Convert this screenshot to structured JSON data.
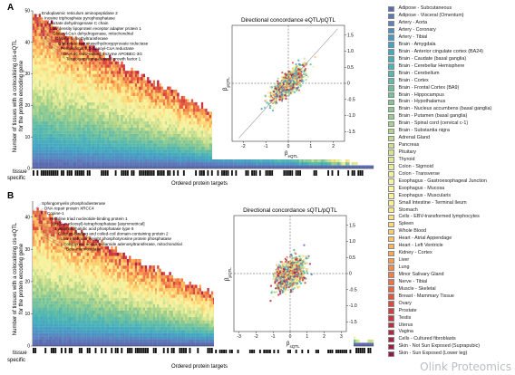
{
  "figure": {
    "panels": [
      {
        "letter": "A",
        "ylabel_lines": [
          "Number of tissues with a colocalising cis-eQTL",
          "for the protein encoding gene"
        ],
        "xlabel": "Ordered protein targets",
        "tissue_label_lines": [
          "tissue",
          "specific"
        ],
        "y_ticks": [
          "0",
          "10",
          "20",
          "30",
          "40",
          "50"
        ],
        "genes": [
          "Endoplasmic reticulum aminopeptidase 2",
          "Inosine triphosphate pyrophosphatase",
          "L-lactate dehydrogenase C chain",
          "Low density lipoprotein receptor adapter protein 1",
          "Glutaryl-CoA dehydrogenase, mitochondrial",
          "Glycine N-methyltransferase",
          "Glyoxylate reductase/hydroxypyruvate reductase",
          "Peroxisomal 2,4-dienoyl-CoA reductase",
          "DNA dC->dU-editing enzyme APOBEC-3G",
          "Teratocarcinoma-derived growth factor 1"
        ],
        "inset": {
          "title": "Directional concordance eQTL/pQTL",
          "xlabel_sym": "β",
          "xlabel_sub": "eQTL",
          "ylabel_sym": "β",
          "ylabel_sub": "pQTL",
          "x_ticks": [
            "-2",
            "-1",
            "0",
            "1",
            "2"
          ],
          "y_ticks": [
            "-1.5",
            "-1.0",
            "-0.5",
            "0",
            "0.5",
            "1.0",
            "1.5"
          ]
        }
      },
      {
        "letter": "B",
        "ylabel_lines": [
          "Number of tissues with a colocalising cis-eQTL",
          "for the protein encoding gene"
        ],
        "xlabel": "Ordered protein targets",
        "tissue_label_lines": [
          "tissue",
          "specific"
        ],
        "y_ticks": [
          "0",
          "10",
          "20",
          "30",
          "40"
        ],
        "genes": [
          "Sphingomyelin phosphodiesterase",
          "DNA repair protein XRCC4",
          "Copine-1",
          "Histidine triad nucleotide-binding protein 1",
          "Bis(5'-nucleosyl)-tetraphosphatase [asymmetrical]",
          "Lysophosphatidic acid phosphatase type 6",
          "Calcium-binding and coiled-coil domain-containing protein 2",
          "Low molecular weight phosphotyrosine protein phosphatase",
          "Cob(I)yrinic acid a,c-diamide adenosyltransferase, mitochondrial",
          "Beta-mannosidase"
        ],
        "inset": {
          "title": "Directional concordance sQTL/pQTL",
          "xlabel_sym": "β",
          "xlabel_sub": "sQTL",
          "ylabel_sym": "β",
          "ylabel_sub": "pQTL",
          "x_ticks": [
            "-3",
            "-2",
            "-1",
            "0",
            "1",
            "2",
            "3"
          ],
          "y_ticks": [
            "-1.5",
            "-1.0",
            "-0.5",
            "0",
            "0.5",
            "1.0",
            "1.5"
          ]
        }
      }
    ]
  },
  "chart_data": [
    {
      "type": "bar",
      "panel": "A",
      "description": "Stacked bars, one per ordered protein target, colored by GTEx tissue; sorted descending",
      "ylim": [
        0,
        50
      ],
      "xlabel": "Ordered protein targets",
      "ylabel": "Number of tissues with a colocalising cis-eQTL for the protein encoding gene",
      "max_value": 48,
      "n_targets": 170
    },
    {
      "type": "scatter",
      "panel": "A-inset",
      "title": "Directional concordance eQTL/pQTL",
      "xlabel": "βeQTL",
      "ylabel": "βpQTL",
      "xlim": [
        -2.5,
        2.5
      ],
      "ylim": [
        -1.8,
        1.8
      ],
      "reference_lines": [
        "x=0 dashed",
        "y=0 dashed",
        "diagonal solid"
      ]
    },
    {
      "type": "bar",
      "panel": "B",
      "description": "Stacked bars, one per ordered protein target, colored by GTEx tissue; sorted descending",
      "ylim": [
        0,
        45
      ],
      "xlabel": "Ordered protein targets",
      "ylabel": "Number of tissues with a colocalising cis-eQTL for the protein encoding gene",
      "max_value": 42,
      "n_targets": 170
    },
    {
      "type": "scatter",
      "panel": "B-inset",
      "title": "Directional concordance sQTL/pQTL",
      "xlabel": "βsQTL",
      "ylabel": "βpQTL",
      "xlim": [
        -3.3,
        3.3
      ],
      "ylim": [
        -1.8,
        1.8
      ],
      "reference_lines": [
        "x=0 dashed",
        "y=0 dashed"
      ]
    }
  ],
  "legend": {
    "items": [
      {
        "label": "Adipose - Subcutaneous",
        "color": "#5a6bb0"
      },
      {
        "label": "Adipose - Visceral (Omentum)",
        "color": "#5f77b8"
      },
      {
        "label": "Artery - Aorta",
        "color": "#5a84bf"
      },
      {
        "label": "Artery - Coronary",
        "color": "#4f8fc2"
      },
      {
        "label": "Artery - Tibial",
        "color": "#4a99c4"
      },
      {
        "label": "Brain - Amygdala",
        "color": "#46a2c3"
      },
      {
        "label": "Brain - Anterior cingulate cortex (BA24)",
        "color": "#45a9bf"
      },
      {
        "label": "Brain - Caudate (basal ganglia)",
        "color": "#48afba"
      },
      {
        "label": "Brain - Cerebellar Hemisphere",
        "color": "#4eb4b4"
      },
      {
        "label": "Brain - Cerebellum",
        "color": "#57b8ad"
      },
      {
        "label": "Brain - Cortex",
        "color": "#61bca6"
      },
      {
        "label": "Brain - Frontal Cortex (BA9)",
        "color": "#6bc09f"
      },
      {
        "label": "Brain - Hippocampus",
        "color": "#76c39a"
      },
      {
        "label": "Brain - Hypothalamus",
        "color": "#82c695"
      },
      {
        "label": "Brain - Nucleus accumbens (basal ganglia)",
        "color": "#8dca91"
      },
      {
        "label": "Brain - Putamen (basal ganglia)",
        "color": "#99ce8e"
      },
      {
        "label": "Brain - Spinal cord (cervical c-1)",
        "color": "#a5d28c"
      },
      {
        "label": "Brain - Substantia nigra",
        "color": "#b1d68b"
      },
      {
        "label": "Adrenal Gland",
        "color": "#bddb8b"
      },
      {
        "label": "Pancreas",
        "color": "#c8df8d"
      },
      {
        "label": "Pituitary",
        "color": "#d3e390"
      },
      {
        "label": "Thyroid",
        "color": "#dde894"
      },
      {
        "label": "Colon - Sigmoid",
        "color": "#e6ec99"
      },
      {
        "label": "Colon - Transverse",
        "color": "#eef09e"
      },
      {
        "label": "Esophagus - Gastroesophageal Junction",
        "color": "#f4f3a3"
      },
      {
        "label": "Esophagus - Mucosa",
        "color": "#f8f3a2"
      },
      {
        "label": "Esophagus - Muscularis",
        "color": "#fbf09b"
      },
      {
        "label": "Small Intestine - Terminal Ileum",
        "color": "#fdec93"
      },
      {
        "label": "Stomach",
        "color": "#fee68a"
      },
      {
        "label": "Cells - EBV-transformed lymphocytes",
        "color": "#fedf80"
      },
      {
        "label": "Spleen",
        "color": "#fed777"
      },
      {
        "label": "Whole Blood",
        "color": "#fdcd6d"
      },
      {
        "label": "Heart - Atrial Appendage",
        "color": "#fcc265"
      },
      {
        "label": "Heart - Left Ventricle",
        "color": "#fbb65d"
      },
      {
        "label": "Kidney - Cortex",
        "color": "#f9a956"
      },
      {
        "label": "Liver",
        "color": "#f79c51"
      },
      {
        "label": "Lung",
        "color": "#f48e4c"
      },
      {
        "label": "Minor Salivary Gland",
        "color": "#f18048"
      },
      {
        "label": "Nerve - Tibial",
        "color": "#ed7245"
      },
      {
        "label": "Muscle - Skeletal",
        "color": "#e86443"
      },
      {
        "label": "Breast - Mammary Tissue",
        "color": "#e25741"
      },
      {
        "label": "Ovary",
        "color": "#db4a40"
      },
      {
        "label": "Prostate",
        "color": "#d33f3f"
      },
      {
        "label": "Testis",
        "color": "#ca353f"
      },
      {
        "label": "Uterus",
        "color": "#c02d40"
      },
      {
        "label": "Vagina",
        "color": "#b52641"
      },
      {
        "label": "Cells - Cultured fibroblasts",
        "color": "#aa2043"
      },
      {
        "label": "Skin - Not Sun Exposed (Suprapubic)",
        "color": "#9e1b45"
      },
      {
        "label": "Skin - Sun Exposed (Lower leg)",
        "color": "#921747"
      }
    ]
  },
  "watermark": "Olink Proteomics"
}
